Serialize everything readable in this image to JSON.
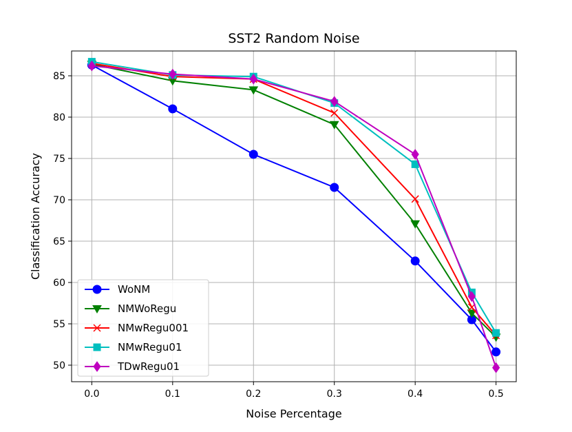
{
  "chart_data": {
    "type": "line",
    "title": "SST2 Random Noise",
    "xlabel": "Noise Percentage",
    "ylabel": "Classification Accuracy",
    "xlim": [
      -0.025,
      0.525
    ],
    "ylim": [
      48,
      88
    ],
    "xticks": [
      "0.0",
      "0.1",
      "0.2",
      "0.3",
      "0.4",
      "0.5"
    ],
    "yticks": [
      "50",
      "55",
      "60",
      "65",
      "70",
      "75",
      "80",
      "85"
    ],
    "grid": true,
    "legend_position": "lower-left",
    "x": [
      0.0,
      0.1,
      0.2,
      0.3,
      0.4,
      0.47,
      0.5
    ],
    "series": [
      {
        "name": "WoNM",
        "color": "#0000ff",
        "marker": "circle",
        "values": [
          86.3,
          81.0,
          75.5,
          71.5,
          62.6,
          55.5,
          51.6
        ]
      },
      {
        "name": "NMWoRegu",
        "color": "#008000",
        "marker": "triangle-down",
        "values": [
          86.4,
          84.4,
          83.3,
          79.1,
          67.1,
          56.3,
          53.4
        ]
      },
      {
        "name": "NMwRegu001",
        "color": "#ff0000",
        "marker": "x",
        "values": [
          86.5,
          84.9,
          84.6,
          80.5,
          70.1,
          57.0,
          53.6
        ]
      },
      {
        "name": "NMwRegu01",
        "color": "#00bfbf",
        "marker": "square",
        "values": [
          86.7,
          85.1,
          84.9,
          81.7,
          74.3,
          58.8,
          53.9
        ]
      },
      {
        "name": "TDwRegu01",
        "color": "#bf00bf",
        "marker": "diamond",
        "values": [
          86.2,
          85.2,
          84.6,
          81.9,
          75.5,
          58.3,
          49.7
        ]
      }
    ]
  }
}
